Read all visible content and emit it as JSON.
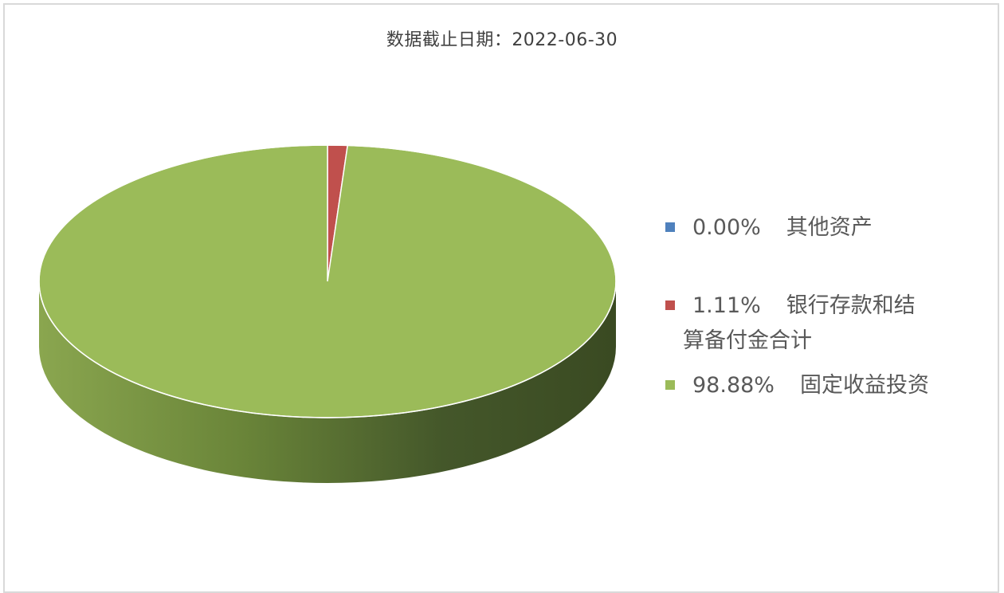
{
  "chart_data": {
    "type": "pie",
    "title": "数据截止日期：2022-06-30",
    "slices": [
      {
        "label": "其他资产",
        "value": 0.0,
        "value_label": "0.00%",
        "color": "#4f81bd"
      },
      {
        "label": "银行存款和结算备付金合计",
        "value": 1.11,
        "value_label": "1.11%",
        "color": "#c0504d"
      },
      {
        "label": "固定收益投资",
        "value": 98.88,
        "value_label": "98.88%",
        "color": "#9bbb59"
      }
    ],
    "legend": "right",
    "style": "3d"
  }
}
